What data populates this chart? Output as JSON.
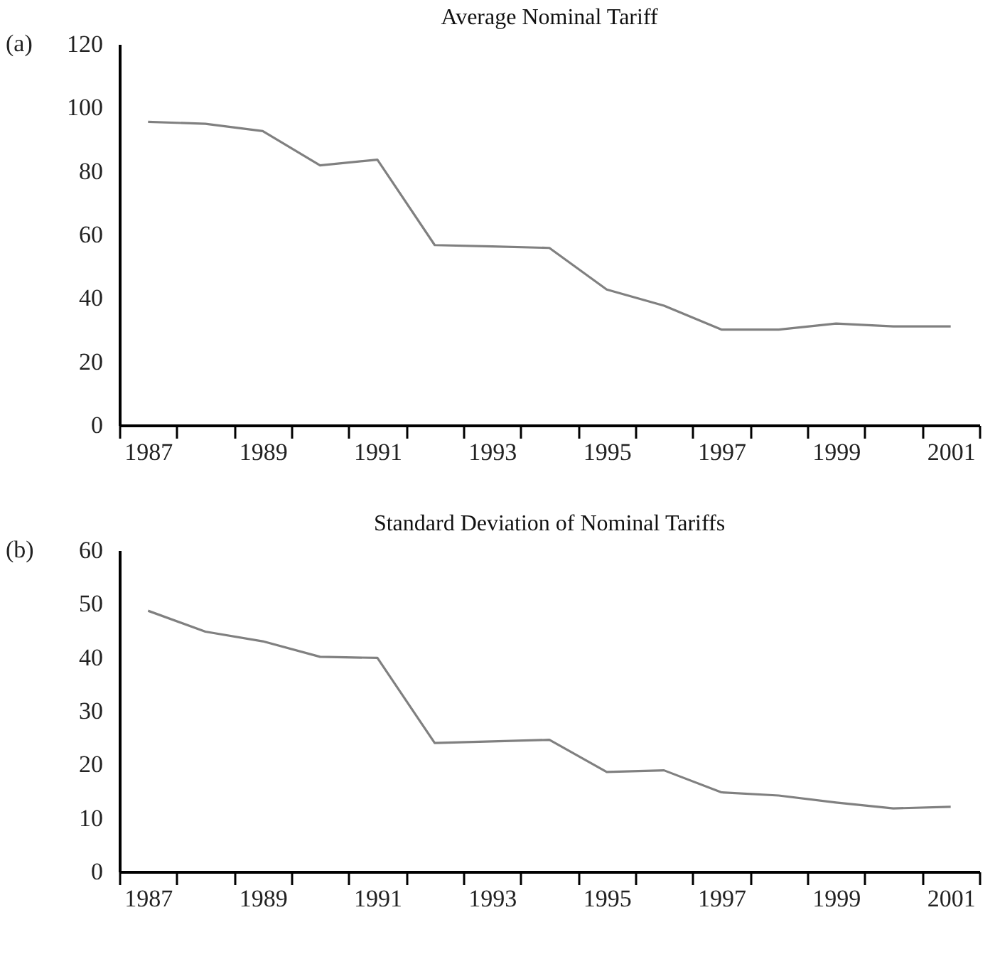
{
  "chart_data": [
    {
      "type": "line",
      "title": "Average Nominal Tariff",
      "annotations": [
        "(a)"
      ],
      "categories": [
        "1987",
        null,
        "1989",
        null,
        "1991",
        null,
        "1993",
        null,
        "1995",
        null,
        "1997",
        null,
        "1999",
        null,
        "2001"
      ],
      "series": [
        {
          "color": "#808080",
          "values": [
            95.5,
            94.9,
            92.6,
            81.8,
            83.6,
            56.7,
            56.3,
            55.8,
            42.7,
            37.6,
            30.1,
            30.1,
            32.0,
            31.1,
            31.1
          ]
        }
      ],
      "ylim": [
        0,
        120
      ],
      "yticks": [
        0,
        20,
        40,
        60,
        80,
        100,
        120
      ],
      "grid": false,
      "marker": "none"
    },
    {
      "type": "line",
      "title": "Standard Deviation of Nominal Tariffs",
      "annotations": [
        "(b)"
      ],
      "categories": [
        "1987",
        null,
        "1989",
        null,
        "1991",
        null,
        "1993",
        null,
        "1995",
        null,
        "1997",
        null,
        "1999",
        null,
        "2001"
      ],
      "series": [
        {
          "color": "#808080",
          "values": [
            48.7,
            44.8,
            43.0,
            40.1,
            39.9,
            24.0,
            24.3,
            24.6,
            18.6,
            18.9,
            14.8,
            14.2,
            12.9,
            11.8,
            12.1
          ]
        }
      ],
      "ylim": [
        0,
        60
      ],
      "yticks": [
        0,
        10,
        20,
        30,
        40,
        50,
        60
      ],
      "grid": false,
      "marker": "none"
    }
  ]
}
